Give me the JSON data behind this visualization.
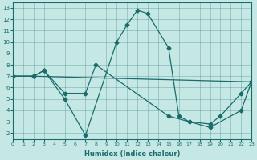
{
  "xlabel": "Humidex (Indice chaleur)",
  "background_color": "#c5e8e5",
  "line_color": "#1a6b6b",
  "xlim": [
    0,
    23
  ],
  "ylim": [
    1.5,
    13.5
  ],
  "xticks": [
    0,
    1,
    2,
    3,
    4,
    5,
    6,
    7,
    8,
    9,
    10,
    11,
    12,
    13,
    14,
    15,
    16,
    17,
    18,
    19,
    20,
    21,
    22,
    23
  ],
  "yticks": [
    2,
    3,
    4,
    5,
    6,
    7,
    8,
    9,
    10,
    11,
    12,
    13
  ],
  "series": [
    {
      "x": [
        0,
        2,
        3,
        5,
        7,
        10,
        11,
        12,
        13,
        15,
        16,
        17,
        19,
        22,
        23
      ],
      "y": [
        7,
        7,
        7.5,
        5,
        1.8,
        10,
        11.5,
        12.8,
        12.5,
        9.5,
        3.5,
        3,
        2.5,
        4,
        6.5
      ]
    },
    {
      "x": [
        0,
        2,
        23
      ],
      "y": [
        7,
        7,
        6.5
      ]
    },
    {
      "x": [
        0,
        2,
        3,
        5,
        7,
        8,
        15,
        17,
        19,
        20,
        22,
        23
      ],
      "y": [
        7,
        7,
        7.5,
        5.5,
        5.5,
        8,
        3.5,
        3,
        2.8,
        3.5,
        5.5,
        6.5
      ]
    }
  ]
}
